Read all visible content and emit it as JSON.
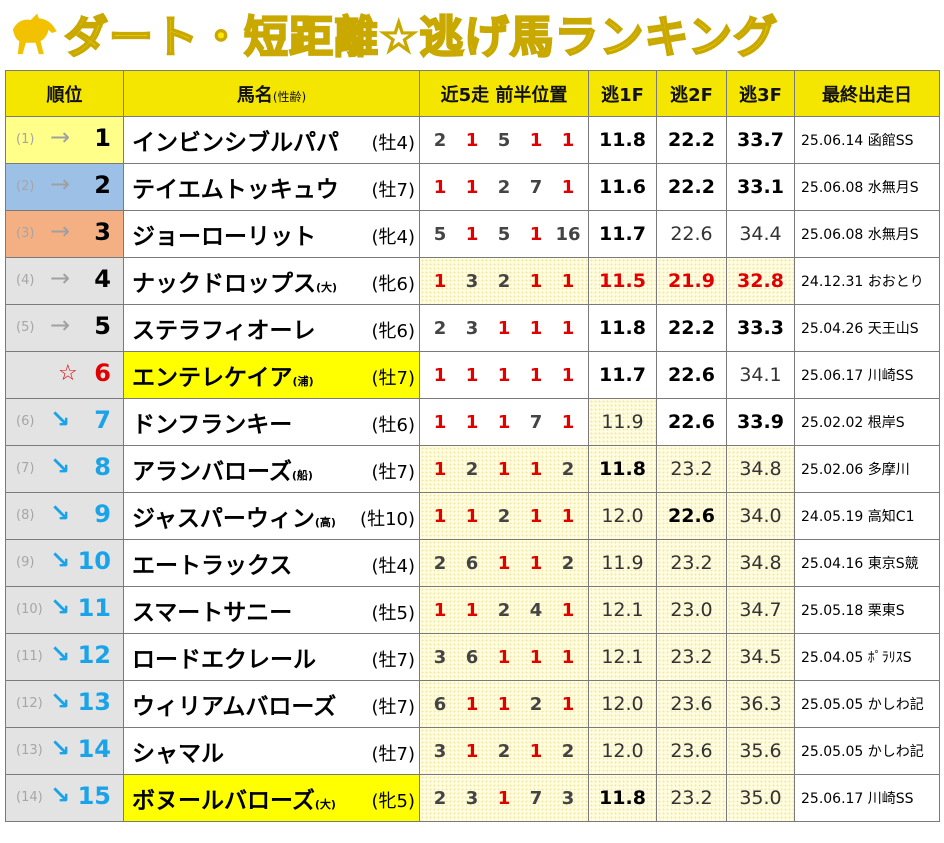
{
  "title": "ダート・短距離☆逃げ馬ランキング",
  "headers": {
    "rank": "順位",
    "name": "馬名",
    "name_sub": "(性齢)",
    "positions": "近5走 前半位置",
    "f1": "逃1F",
    "f2": "逃2F",
    "f3": "逃3F",
    "last_race": "最終出走日"
  },
  "rows": [
    {
      "prev": "(1)",
      "arrow": "→",
      "rank": "1",
      "name": "インビンシブルパパ",
      "tag": "",
      "sa": "(牡4)",
      "pos": [
        "2",
        "1",
        "5",
        "1",
        "1"
      ],
      "f1": "11.8",
      "f2": "22.2",
      "f3": "33.7",
      "race": "25.06.14 函館SS"
    },
    {
      "prev": "(2)",
      "arrow": "→",
      "rank": "2",
      "name": "テイエムトッキュウ",
      "tag": "",
      "sa": "(牡7)",
      "pos": [
        "1",
        "1",
        "2",
        "7",
        "1"
      ],
      "f1": "11.6",
      "f2": "22.2",
      "f3": "33.1",
      "race": "25.06.08 水無月S"
    },
    {
      "prev": "(3)",
      "arrow": "→",
      "rank": "3",
      "name": "ジョーローリット",
      "tag": "",
      "sa": "(牝4)",
      "pos": [
        "5",
        "1",
        "5",
        "1",
        "16"
      ],
      "f1": "11.7",
      "f2": "22.6",
      "f3": "34.4",
      "race": "25.06.08 水無月S"
    },
    {
      "prev": "(4)",
      "arrow": "→",
      "rank": "4",
      "name": "ナックドロップス",
      "tag": "(大)",
      "sa": "(牝6)",
      "pos": [
        "1",
        "3",
        "2",
        "1",
        "1"
      ],
      "f1": "11.5",
      "f2": "21.9",
      "f3": "32.8",
      "race": "24.12.31 おおとり"
    },
    {
      "prev": "(5)",
      "arrow": "→",
      "rank": "5",
      "name": "ステラフィオーレ",
      "tag": "",
      "sa": "(牝6)",
      "pos": [
        "2",
        "3",
        "1",
        "1",
        "1"
      ],
      "f1": "11.8",
      "f2": "22.2",
      "f3": "33.3",
      "race": "25.04.26 天王山S"
    },
    {
      "prev": "",
      "arrow": "☆",
      "rank": "6",
      "name": "エンテレケイア",
      "tag": "(浦)",
      "sa": "(牡7)",
      "pos": [
        "1",
        "1",
        "1",
        "1",
        "1"
      ],
      "f1": "11.7",
      "f2": "22.6",
      "f3": "34.1",
      "race": "25.06.17 川崎SS"
    },
    {
      "prev": "(6)",
      "arrow": "↘",
      "rank": "7",
      "name": "ドンフランキー",
      "tag": "",
      "sa": "(牡6)",
      "pos": [
        "1",
        "1",
        "1",
        "7",
        "1"
      ],
      "f1": "11.9",
      "f2": "22.6",
      "f3": "33.9",
      "race": "25.02.02 根岸S"
    },
    {
      "prev": "(7)",
      "arrow": "↘",
      "rank": "8",
      "name": "アランバローズ",
      "tag": "(船)",
      "sa": "(牡7)",
      "pos": [
        "1",
        "2",
        "1",
        "1",
        "2"
      ],
      "f1": "11.8",
      "f2": "23.2",
      "f3": "34.8",
      "race": "25.02.06 多摩川"
    },
    {
      "prev": "(8)",
      "arrow": "↘",
      "rank": "9",
      "name": "ジャスパーウィン",
      "tag": "(高)",
      "sa": "(牡10)",
      "pos": [
        "1",
        "1",
        "2",
        "1",
        "1"
      ],
      "f1": "12.0",
      "f2": "22.6",
      "f3": "34.0",
      "race": "24.05.19 高知C1"
    },
    {
      "prev": "(9)",
      "arrow": "↘",
      "rank": "10",
      "name": "エートラックス",
      "tag": "",
      "sa": "(牡4)",
      "pos": [
        "2",
        "6",
        "1",
        "1",
        "2"
      ],
      "f1": "11.9",
      "f2": "23.2",
      "f3": "34.8",
      "race": "25.04.16 東京S競"
    },
    {
      "prev": "(10)",
      "arrow": "↘",
      "rank": "11",
      "name": "スマートサニー",
      "tag": "",
      "sa": "(牡5)",
      "pos": [
        "1",
        "1",
        "2",
        "4",
        "1"
      ],
      "f1": "12.1",
      "f2": "23.0",
      "f3": "34.7",
      "race": "25.05.18 栗東S"
    },
    {
      "prev": "(11)",
      "arrow": "↘",
      "rank": "12",
      "name": "ロードエクレール",
      "tag": "",
      "sa": "(牡7)",
      "pos": [
        "3",
        "6",
        "1",
        "1",
        "1"
      ],
      "f1": "12.1",
      "f2": "23.2",
      "f3": "34.5",
      "race": "25.04.05 ﾎﾟﾗﾘｽS"
    },
    {
      "prev": "(12)",
      "arrow": "↘",
      "rank": "13",
      "name": "ウィリアムバローズ",
      "tag": "",
      "sa": "(牡7)",
      "pos": [
        "6",
        "1",
        "1",
        "2",
        "1"
      ],
      "f1": "12.0",
      "f2": "23.6",
      "f3": "36.3",
      "race": "25.05.05 かしわ記"
    },
    {
      "prev": "(13)",
      "arrow": "↘",
      "rank": "14",
      "name": "シャマル",
      "tag": "",
      "sa": "(牡7)",
      "pos": [
        "3",
        "1",
        "2",
        "1",
        "2"
      ],
      "f1": "12.0",
      "f2": "23.6",
      "f3": "35.6",
      "race": "25.05.05 かしわ記"
    },
    {
      "prev": "(14)",
      "arrow": "↘",
      "rank": "15",
      "name": "ボヌールバローズ",
      "tag": "(大)",
      "sa": "(牝5)",
      "pos": [
        "2",
        "3",
        "1",
        "7",
        "3"
      ],
      "f1": "11.8",
      "f2": "23.2",
      "f3": "35.0",
      "race": "25.06.17 川崎SS"
    }
  ],
  "colors": {
    "header_bg": "#f5e600",
    "title_fill": "#ffe800",
    "rank1_bg": "#ffff8a",
    "rank2_bg": "#9cc0e6",
    "rank3_bg": "#f4b083",
    "highlight_name_bg": "#ffff00",
    "red": "#e00000",
    "blue_arrow": "#1aa3e8"
  },
  "icons": {
    "title": "horse-icon"
  }
}
